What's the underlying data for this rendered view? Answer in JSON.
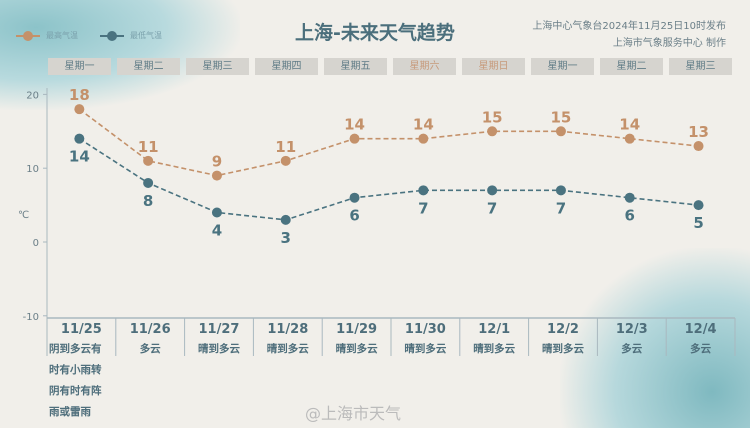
{
  "header": {
    "title": "上海-未来天气趋势",
    "publisher": "上海中心气象台2024年11月25日10时发布",
    "producer": "上海市气象服务中心 制作"
  },
  "legend": {
    "high": "最高气温",
    "low": "最低气温"
  },
  "weekdays": [
    "星期一",
    "星期二",
    "星期三",
    "星期四",
    "星期五",
    "星期六",
    "星期日",
    "星期一",
    "星期二",
    "星期三"
  ],
  "colors": {
    "high": "#c4916a",
    "low": "#4a7380",
    "weekend": "#c79a7b"
  },
  "chart_data": {
    "type": "line",
    "ylabel": "℃",
    "ylim": [
      -10,
      20
    ],
    "yticks": [
      20,
      10,
      0,
      -10
    ],
    "categories": [
      "11/25",
      "11/26",
      "11/27",
      "11/28",
      "11/29",
      "11/30",
      "12/1",
      "12/2",
      "12/3",
      "12/4"
    ],
    "series": [
      {
        "name": "最高气温",
        "values": [
          18,
          11,
          9,
          11,
          14,
          14,
          15,
          15,
          14,
          13
        ]
      },
      {
        "name": "最低气温",
        "values": [
          14,
          8,
          4,
          3,
          6,
          7,
          7,
          7,
          6,
          5
        ]
      }
    ]
  },
  "weather": [
    "阴到多云有时有小雨转阴有时有阵雨或雷雨",
    "多云",
    "晴到多云",
    "晴到多云",
    "晴到多云",
    "晴到多云",
    "晴到多云",
    "晴到多云",
    "多云",
    "多云"
  ],
  "watermark": "@上海市天气"
}
